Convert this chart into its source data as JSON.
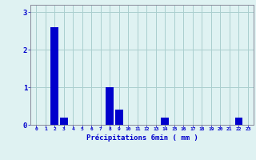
{
  "categories": [
    0,
    1,
    2,
    3,
    4,
    5,
    6,
    7,
    8,
    9,
    10,
    11,
    12,
    13,
    14,
    15,
    16,
    17,
    18,
    19,
    20,
    21,
    22,
    23
  ],
  "values": [
    0,
    0,
    2.6,
    0.2,
    0,
    0,
    0,
    0,
    1.0,
    0.4,
    0,
    0,
    0,
    0,
    0.2,
    0,
    0,
    0,
    0,
    0,
    0,
    0,
    0.2,
    0
  ],
  "bar_color": "#0000cc",
  "background_color": "#dff2f2",
  "grid_color": "#aacece",
  "xlabel": "Précipitations 6min ( mm )",
  "xlabel_color": "#0000cc",
  "tick_color": "#0000cc",
  "spine_color": "#888899",
  "ylim": [
    0,
    3.2
  ],
  "yticks": [
    0,
    1,
    2,
    3
  ],
  "bar_width": 0.85
}
